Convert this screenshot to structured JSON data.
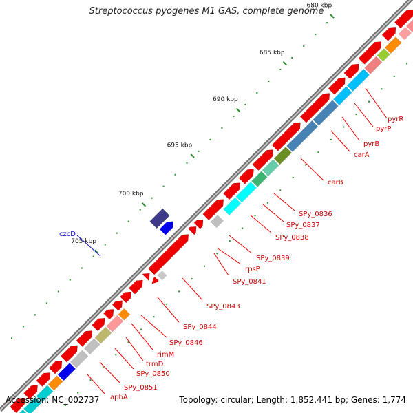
{
  "map": {
    "title": "Streptococcus pyogenes M1 GAS, complete genome",
    "accession": "Accession: NC_002737",
    "summary": "Topology: circular; Length: 1,852,441 bp; Genes: 1,774"
  },
  "ticks": [
    "680 kbp",
    "685 kbp",
    "690 kbp",
    "695 kbp",
    "700 kbp",
    "705 kbp"
  ],
  "gene_labels": [
    "pyrR",
    "pyrP",
    "pyrB",
    "carA",
    "carB",
    "SPy_0836",
    "SPy_0837",
    "SPy_0838",
    "SPy_0839",
    "rpsP",
    "SPy_0841",
    "SPy_0843",
    "SPy_0844",
    "SPy_0846",
    "rimM",
    "trmD",
    "SPy_0850",
    "SPy_0851",
    "apbA"
  ],
  "other_labels": [
    "czcD"
  ],
  "colors": {
    "forward_gene": "#ee0000",
    "label_line": "#ee0000",
    "label_blue": "#0000cc",
    "backbone": "#888888",
    "tick": "#2a8a2a"
  }
}
